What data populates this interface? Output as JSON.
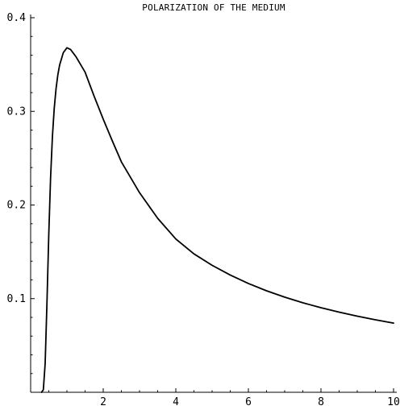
{
  "chart_data": {
    "type": "line",
    "title": "POLARIZATION OF THE MEDIUM",
    "xlabel": "",
    "ylabel": "",
    "xlim": [
      0,
      10
    ],
    "ylim": [
      0,
      0.4
    ],
    "x_ticks": [
      2,
      4,
      6,
      8,
      10
    ],
    "y_ticks": [
      0.1,
      0.2,
      0.3,
      0.4
    ],
    "x_tick_labels": [
      "2",
      "4",
      "6",
      "8",
      "10"
    ],
    "y_tick_labels": [
      "0.1",
      "0.2",
      "0.3",
      "0.4"
    ],
    "grid": false,
    "legend": "none",
    "series": [
      {
        "color": "#000000",
        "x": [
          0.3,
          0.35,
          0.4,
          0.45,
          0.5,
          0.55,
          0.6,
          0.65,
          0.7,
          0.75,
          0.8,
          0.9,
          1.0,
          1.1,
          1.25,
          1.5,
          1.75,
          2.0,
          2.25,
          2.5,
          3.0,
          3.5,
          4.0,
          4.5,
          5.0,
          5.5,
          6.0,
          6.5,
          7.0,
          7.5,
          8.0,
          8.5,
          9.0,
          9.5,
          10.0
        ],
        "values": [
          0.0,
          0.0027,
          0.0308,
          0.0961,
          0.1692,
          0.2297,
          0.2732,
          0.3032,
          0.3242,
          0.3392,
          0.3497,
          0.3627,
          0.3679,
          0.3661,
          0.3583,
          0.3419,
          0.3161,
          0.2917,
          0.2685,
          0.2461,
          0.2132,
          0.1858,
          0.1637,
          0.1478,
          0.1356,
          0.1252,
          0.1162,
          0.1084,
          0.1016,
          0.0956,
          0.0903,
          0.0856,
          0.0813,
          0.0774,
          0.0739
        ]
      }
    ]
  }
}
